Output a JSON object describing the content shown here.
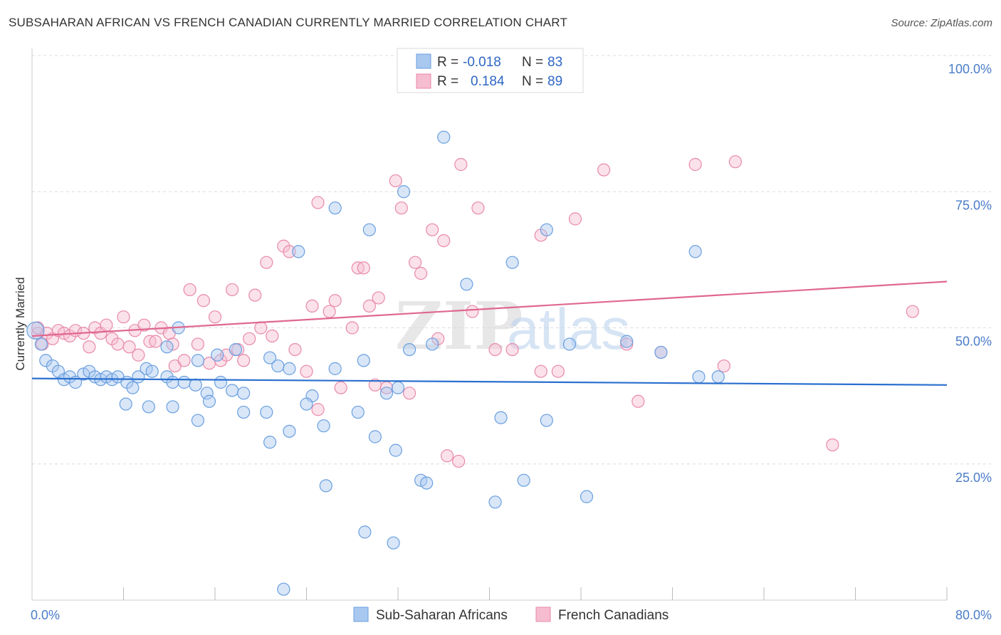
{
  "title": "SUBSAHARAN AFRICAN VS FRENCH CANADIAN CURRENTLY MARRIED CORRELATION CHART",
  "source": "Source: ZipAtlas.com",
  "watermark": {
    "zip": "ZIP",
    "atlas": "atlas"
  },
  "colors": {
    "blue_fill": "#a8c8f0",
    "blue_stroke": "#6a9fe0",
    "blue_line": "#2a6fcf",
    "pink_fill": "#f6bcd0",
    "pink_stroke": "#e88aa8",
    "pink_line": "#e06890",
    "tick_text": "#4a7cc9"
  },
  "legend_box": {
    "rows": [
      {
        "r_label": "R =",
        "r_value": "-0.018",
        "n_label": "N =",
        "n_value": "83"
      },
      {
        "r_label": "R =",
        "r_value": "0.184",
        "n_label": "N =",
        "n_value": "89"
      }
    ]
  },
  "chart_data": {
    "type": "scatter",
    "title": "SUBSAHARAN AFRICAN VS FRENCH CANADIAN CURRENTLY MARRIED CORRELATION CHART",
    "xlabel": "",
    "ylabel": "Currently Married",
    "xlim": [
      0,
      80
    ],
    "ylim": [
      0,
      100
    ],
    "x_tick_labels": [
      "0.0%",
      "80.0%"
    ],
    "y_tick_labels": [
      "25.0%",
      "50.0%",
      "75.0%",
      "100.0%"
    ],
    "y_ticks": [
      25,
      50,
      75,
      100
    ],
    "grid": true,
    "legend_position": "bottom-center",
    "series": [
      {
        "name": "Sub-Saharan Africans",
        "color": "blue",
        "r": -0.018,
        "n": 83,
        "trend": [
          [
            0,
            40.7
          ],
          [
            80,
            39.5
          ]
        ],
        "points": [
          [
            0.3,
            49.5
          ],
          [
            0.8,
            47
          ],
          [
            1.2,
            44
          ],
          [
            1.8,
            43
          ],
          [
            2.3,
            42
          ],
          [
            2.8,
            40.5
          ],
          [
            3.3,
            41
          ],
          [
            3.8,
            40
          ],
          [
            4.5,
            41.5
          ],
          [
            5,
            42
          ],
          [
            5.5,
            41
          ],
          [
            6,
            40.5
          ],
          [
            6.5,
            41
          ],
          [
            7,
            40.5
          ],
          [
            7.5,
            41
          ],
          [
            8.3,
            40
          ],
          [
            8.8,
            39
          ],
          [
            9.3,
            41
          ],
          [
            10,
            42.5
          ],
          [
            10.5,
            42
          ],
          [
            11.8,
            41
          ],
          [
            12.3,
            40
          ],
          [
            13.3,
            40
          ],
          [
            14.3,
            39.5
          ],
          [
            15.3,
            38
          ],
          [
            16.5,
            40
          ],
          [
            17.5,
            38.5
          ],
          [
            18.5,
            38
          ],
          [
            8.2,
            36
          ],
          [
            10.2,
            35.5
          ],
          [
            12.3,
            35.5
          ],
          [
            14.5,
            33
          ],
          [
            15.5,
            36.5
          ],
          [
            18.5,
            34.5
          ],
          [
            20.5,
            34.5
          ],
          [
            22.5,
            31
          ],
          [
            20.8,
            29
          ],
          [
            21.5,
            43
          ],
          [
            22.5,
            42.5
          ],
          [
            24.5,
            37.5
          ],
          [
            24,
            36
          ],
          [
            25.5,
            32
          ],
          [
            26.5,
            42.5
          ],
          [
            28.5,
            34.5
          ],
          [
            29,
            44
          ],
          [
            31,
            38
          ],
          [
            32,
            39
          ],
          [
            31.8,
            27.5
          ],
          [
            34,
            22
          ],
          [
            34.5,
            21.5
          ],
          [
            25.7,
            21
          ],
          [
            29.1,
            12.5
          ],
          [
            31.6,
            10.5
          ],
          [
            40.5,
            18
          ],
          [
            45,
            33
          ],
          [
            48.5,
            19
          ],
          [
            43,
            22
          ],
          [
            41,
            33.5
          ],
          [
            38,
            58
          ],
          [
            42,
            62
          ],
          [
            47,
            47
          ],
          [
            52,
            47.5
          ],
          [
            55,
            45.5
          ],
          [
            58,
            64
          ],
          [
            58.3,
            41
          ],
          [
            60,
            41
          ],
          [
            29.5,
            68
          ],
          [
            30,
            30
          ],
          [
            33,
            46
          ],
          [
            35,
            47
          ],
          [
            32.5,
            75
          ],
          [
            36,
            85
          ],
          [
            11.8,
            46.5
          ],
          [
            12.8,
            50
          ],
          [
            14.5,
            44
          ],
          [
            16.2,
            45
          ],
          [
            17.8,
            46
          ],
          [
            20.8,
            44.5
          ],
          [
            23.3,
            64
          ],
          [
            26.5,
            72
          ],
          [
            45,
            68
          ],
          [
            22,
            2
          ]
        ]
      },
      {
        "name": "French Canadians",
        "color": "pink",
        "r": 0.184,
        "n": 89,
        "trend": [
          [
            0,
            48.5
          ],
          [
            80,
            58.5
          ]
        ],
        "points": [
          [
            0.5,
            49
          ],
          [
            0.9,
            47
          ],
          [
            1.3,
            49
          ],
          [
            1.8,
            48
          ],
          [
            2.3,
            49.5
          ],
          [
            2.8,
            49
          ],
          [
            3.3,
            48.5
          ],
          [
            3.8,
            49.5
          ],
          [
            4.5,
            49
          ],
          [
            5,
            46.5
          ],
          [
            5.5,
            50
          ],
          [
            6,
            49
          ],
          [
            6.5,
            50.5
          ],
          [
            7,
            48
          ],
          [
            7.5,
            47
          ],
          [
            8,
            52
          ],
          [
            8.5,
            46.5
          ],
          [
            9,
            49.5
          ],
          [
            9.8,
            50.5
          ],
          [
            10.3,
            47.5
          ],
          [
            10.8,
            47.5
          ],
          [
            11.3,
            50
          ],
          [
            12,
            49
          ],
          [
            12.5,
            43
          ],
          [
            13.3,
            44
          ],
          [
            13.8,
            57
          ],
          [
            14.5,
            47
          ],
          [
            15,
            55
          ],
          [
            15.5,
            43.5
          ],
          [
            16,
            52
          ],
          [
            16.5,
            44
          ],
          [
            17,
            45
          ],
          [
            17.5,
            57
          ],
          [
            18,
            46
          ],
          [
            18.5,
            44
          ],
          [
            19,
            48
          ],
          [
            19.5,
            56
          ],
          [
            20,
            50
          ],
          [
            20.5,
            62
          ],
          [
            21,
            48.5
          ],
          [
            22,
            65
          ],
          [
            22.5,
            64
          ],
          [
            23,
            46
          ],
          [
            24,
            42
          ],
          [
            24.5,
            54
          ],
          [
            25,
            73
          ],
          [
            26,
            53
          ],
          [
            26.5,
            55
          ],
          [
            27,
            39
          ],
          [
            28,
            50
          ],
          [
            28.5,
            61
          ],
          [
            29,
            61
          ],
          [
            29.5,
            54
          ],
          [
            30.3,
            55.5
          ],
          [
            31,
            39
          ],
          [
            31.8,
            77
          ],
          [
            32.3,
            72
          ],
          [
            33,
            38
          ],
          [
            33.5,
            62
          ],
          [
            34,
            60
          ],
          [
            35,
            68
          ],
          [
            35.5,
            48
          ],
          [
            36,
            66
          ],
          [
            36.3,
            26.5
          ],
          [
            37.3,
            25.5
          ],
          [
            37.5,
            80
          ],
          [
            38.5,
            53
          ],
          [
            39,
            72
          ],
          [
            40.5,
            46
          ],
          [
            42,
            46
          ],
          [
            44.5,
            67
          ],
          [
            44.5,
            42
          ],
          [
            46,
            42
          ],
          [
            47.5,
            70
          ],
          [
            50,
            79
          ],
          [
            52,
            47
          ],
          [
            53,
            36.5
          ],
          [
            55,
            45.5
          ],
          [
            58,
            80
          ],
          [
            60.5,
            43
          ],
          [
            61.5,
            80.5
          ],
          [
            70,
            28.5
          ],
          [
            77,
            53
          ],
          [
            9.3,
            45
          ],
          [
            12.3,
            47
          ],
          [
            25,
            35
          ],
          [
            30,
            39.5
          ],
          [
            0.5,
            50
          ]
        ]
      }
    ]
  }
}
